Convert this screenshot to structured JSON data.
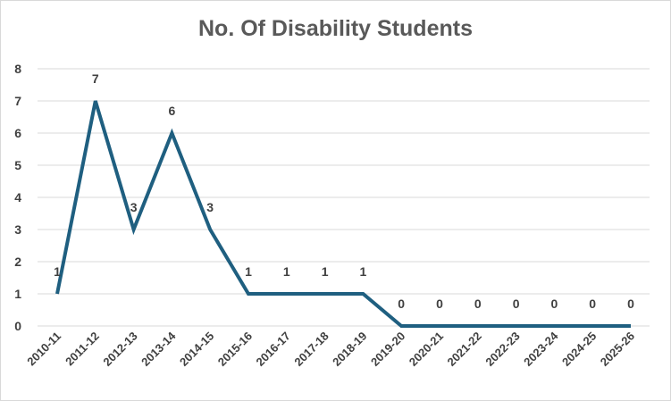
{
  "chart_data": {
    "type": "line",
    "title": "No. Of Disability Students",
    "xlabel": "",
    "ylabel": "",
    "categories": [
      "2010-11",
      "2011-12",
      "2012-13",
      "2013-14",
      "2014-15",
      "2015-16",
      "2016-17",
      "2017-18",
      "2018-19",
      "2019-20",
      "2020-21",
      "2021-22",
      "2022-23",
      "2023-24",
      "2024-25",
      "2025-26"
    ],
    "series": [
      {
        "values": [
          1,
          7,
          3,
          6,
          3,
          1,
          1,
          1,
          1,
          0,
          0,
          0,
          0,
          0,
          0,
          0
        ]
      }
    ],
    "yticks": [
      "0",
      "1",
      "2",
      "3",
      "4",
      "5",
      "6",
      "7",
      "8"
    ],
    "ylim": [
      0,
      8
    ],
    "grid": true,
    "legend": "none",
    "data_labels": true,
    "line_color": "#1f5f80"
  }
}
